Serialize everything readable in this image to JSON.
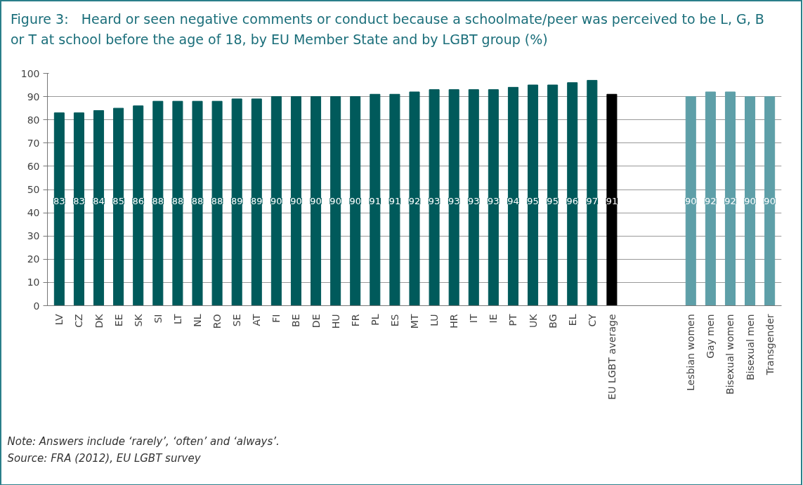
{
  "chart_data": {
    "type": "bar",
    "title": "Figure 3:   Heard or seen negative comments or conduct because a schoolmate/peer was perceived to be L, G, B or T at school before the age of 18, by EU Member State and by LGBT group (%)",
    "categories": [
      "LV",
      "CZ",
      "DK",
      "EE",
      "SK",
      "SI",
      "LT",
      "NL",
      "RO",
      "SE",
      "AT",
      "FI",
      "BE",
      "DE",
      "HU",
      "FR",
      "PL",
      "ES",
      "MT",
      "LU",
      "HR",
      "IT",
      "IE",
      "PT",
      "UK",
      "BG",
      "EL",
      "CY",
      "EU LGBT average",
      null,
      null,
      null,
      "Lesbian women",
      "Gay men",
      "Bisexual women",
      "Bisexual men",
      "Transgender"
    ],
    "values": [
      83,
      83,
      84,
      85,
      86,
      88,
      88,
      88,
      88,
      89,
      89,
      90,
      90,
      90,
      90,
      90,
      91,
      91,
      92,
      93,
      93,
      93,
      93,
      94,
      95,
      95,
      96,
      97,
      91,
      null,
      null,
      null,
      90,
      92,
      92,
      90,
      90
    ],
    "colors": [
      "#005a5b",
      "#005a5b",
      "#005a5b",
      "#005a5b",
      "#005a5b",
      "#005a5b",
      "#005a5b",
      "#005a5b",
      "#005a5b",
      "#005a5b",
      "#005a5b",
      "#005a5b",
      "#005a5b",
      "#005a5b",
      "#005a5b",
      "#005a5b",
      "#005a5b",
      "#005a5b",
      "#005a5b",
      "#005a5b",
      "#005a5b",
      "#005a5b",
      "#005a5b",
      "#005a5b",
      "#005a5b",
      "#005a5b",
      "#005a5b",
      "#005a5b",
      "#000000",
      "#005a5b",
      "#005a5b",
      "#005a5b",
      "#5e9fa8",
      "#5e9fa8",
      "#5e9fa8",
      "#5e9fa8",
      "#5e9fa8"
    ],
    "ylim": [
      0,
      100
    ],
    "yticks": [
      0,
      10,
      20,
      30,
      40,
      50,
      60,
      70,
      80,
      90,
      100
    ],
    "grid": "y",
    "data_labels": true,
    "annotations": [
      "Note:      Answers include ‘rarely’, ‘often’ and ‘always’.",
      "Source:   FRA (2012), EU LGBT survey"
    ]
  }
}
